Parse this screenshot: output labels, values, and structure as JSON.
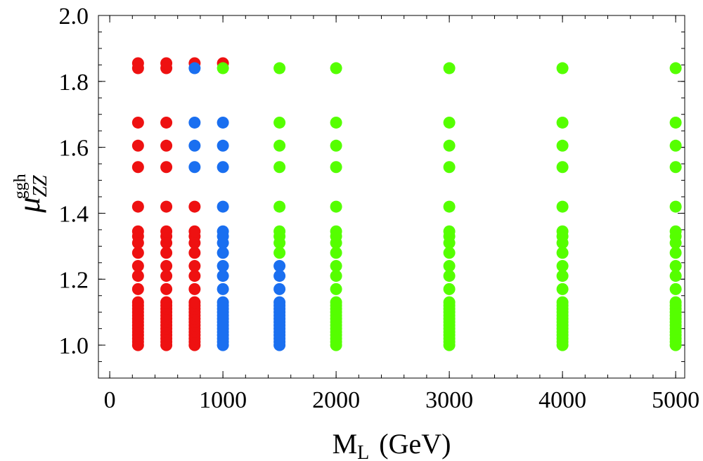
{
  "chart_data": {
    "type": "scatter",
    "title": "",
    "xlabel": "M",
    "xlabel_sub": "L",
    "xlabel_unit": "(GeV)",
    "ylabel": "μ",
    "ylabel_sub": "ZZ",
    "ylabel_sup": "ggh",
    "xlim": [
      -100,
      5080
    ],
    "ylim": [
      0.9,
      2.0
    ],
    "x_ticks": [
      "0",
      "1000",
      "2000",
      "3000",
      "4000",
      "5000"
    ],
    "y_ticks": [
      "1.0",
      "1.2",
      "1.4",
      "1.6",
      "1.8",
      "2.0"
    ],
    "x_minor_step": 200,
    "y_minor_step": 0.05,
    "grid": false,
    "colors": {
      "red": "#ee1111",
      "blue": "#1a6ff0",
      "green": "#55ff00"
    },
    "y_levels": [
      1.0,
      1.01,
      1.02,
      1.03,
      1.04,
      1.05,
      1.06,
      1.07,
      1.08,
      1.09,
      1.1,
      1.11,
      1.12,
      1.13,
      1.17,
      1.21,
      1.24,
      1.28,
      1.31,
      1.33,
      1.345,
      1.42,
      1.54,
      1.605,
      1.675,
      1.84,
      1.855
    ],
    "series": [
      {
        "name": "red",
        "color": "#ee1111",
        "points": [
          [
            250,
            [
              1.0,
              1.01,
              1.02,
              1.03,
              1.04,
              1.05,
              1.06,
              1.07,
              1.08,
              1.09,
              1.1,
              1.11,
              1.12,
              1.13,
              1.17,
              1.21,
              1.24,
              1.28,
              1.31,
              1.33,
              1.345,
              1.42,
              1.54,
              1.605,
              1.675,
              1.84,
              1.855
            ]
          ],
          [
            500,
            [
              1.0,
              1.01,
              1.02,
              1.03,
              1.04,
              1.05,
              1.06,
              1.07,
              1.08,
              1.09,
              1.1,
              1.11,
              1.12,
              1.13,
              1.17,
              1.21,
              1.24,
              1.28,
              1.31,
              1.33,
              1.345,
              1.42,
              1.54,
              1.605,
              1.675,
              1.84,
              1.855
            ]
          ],
          [
            750,
            [
              1.0,
              1.01,
              1.02,
              1.03,
              1.04,
              1.05,
              1.06,
              1.07,
              1.08,
              1.09,
              1.1,
              1.11,
              1.12,
              1.13,
              1.17,
              1.21,
              1.24,
              1.28,
              1.31,
              1.33,
              1.345,
              1.42,
              1.855
            ]
          ],
          [
            1000,
            [
              1.855
            ]
          ]
        ]
      },
      {
        "name": "blue",
        "color": "#1a6ff0",
        "points": [
          [
            750,
            [
              1.54,
              1.605,
              1.675,
              1.84
            ]
          ],
          [
            1000,
            [
              1.0,
              1.01,
              1.02,
              1.03,
              1.04,
              1.05,
              1.06,
              1.07,
              1.08,
              1.09,
              1.1,
              1.11,
              1.12,
              1.13,
              1.17,
              1.21,
              1.24,
              1.28,
              1.31,
              1.33,
              1.345,
              1.42,
              1.54,
              1.605,
              1.675
            ]
          ],
          [
            1500,
            [
              1.0,
              1.01,
              1.02,
              1.03,
              1.04,
              1.05,
              1.06,
              1.07,
              1.08,
              1.09,
              1.1,
              1.11,
              1.12,
              1.13,
              1.17,
              1.21,
              1.24
            ]
          ]
        ]
      },
      {
        "name": "green",
        "color": "#55ff00",
        "points": [
          [
            1000,
            [
              1.84
            ]
          ],
          [
            1500,
            [
              1.28,
              1.31,
              1.33,
              1.345,
              1.42,
              1.54,
              1.605,
              1.675,
              1.84
            ]
          ],
          [
            2000,
            [
              1.0,
              1.01,
              1.02,
              1.03,
              1.04,
              1.05,
              1.06,
              1.07,
              1.08,
              1.09,
              1.1,
              1.11,
              1.12,
              1.13,
              1.17,
              1.21,
              1.24,
              1.28,
              1.31,
              1.33,
              1.345,
              1.42,
              1.54,
              1.605,
              1.675,
              1.84
            ]
          ],
          [
            3000,
            [
              1.0,
              1.01,
              1.02,
              1.03,
              1.04,
              1.05,
              1.06,
              1.07,
              1.08,
              1.09,
              1.1,
              1.11,
              1.12,
              1.13,
              1.17,
              1.21,
              1.24,
              1.28,
              1.31,
              1.33,
              1.345,
              1.42,
              1.54,
              1.605,
              1.675,
              1.84
            ]
          ],
          [
            4000,
            [
              1.0,
              1.01,
              1.02,
              1.03,
              1.04,
              1.05,
              1.06,
              1.07,
              1.08,
              1.09,
              1.1,
              1.11,
              1.12,
              1.13,
              1.17,
              1.21,
              1.24,
              1.28,
              1.31,
              1.33,
              1.345,
              1.42,
              1.54,
              1.605,
              1.675,
              1.84
            ]
          ],
          [
            5000,
            [
              1.0,
              1.01,
              1.02,
              1.03,
              1.04,
              1.05,
              1.06,
              1.07,
              1.08,
              1.09,
              1.1,
              1.11,
              1.12,
              1.13,
              1.17,
              1.21,
              1.24,
              1.28,
              1.31,
              1.33,
              1.345,
              1.42,
              1.54,
              1.605,
              1.675,
              1.84
            ]
          ]
        ]
      }
    ]
  }
}
